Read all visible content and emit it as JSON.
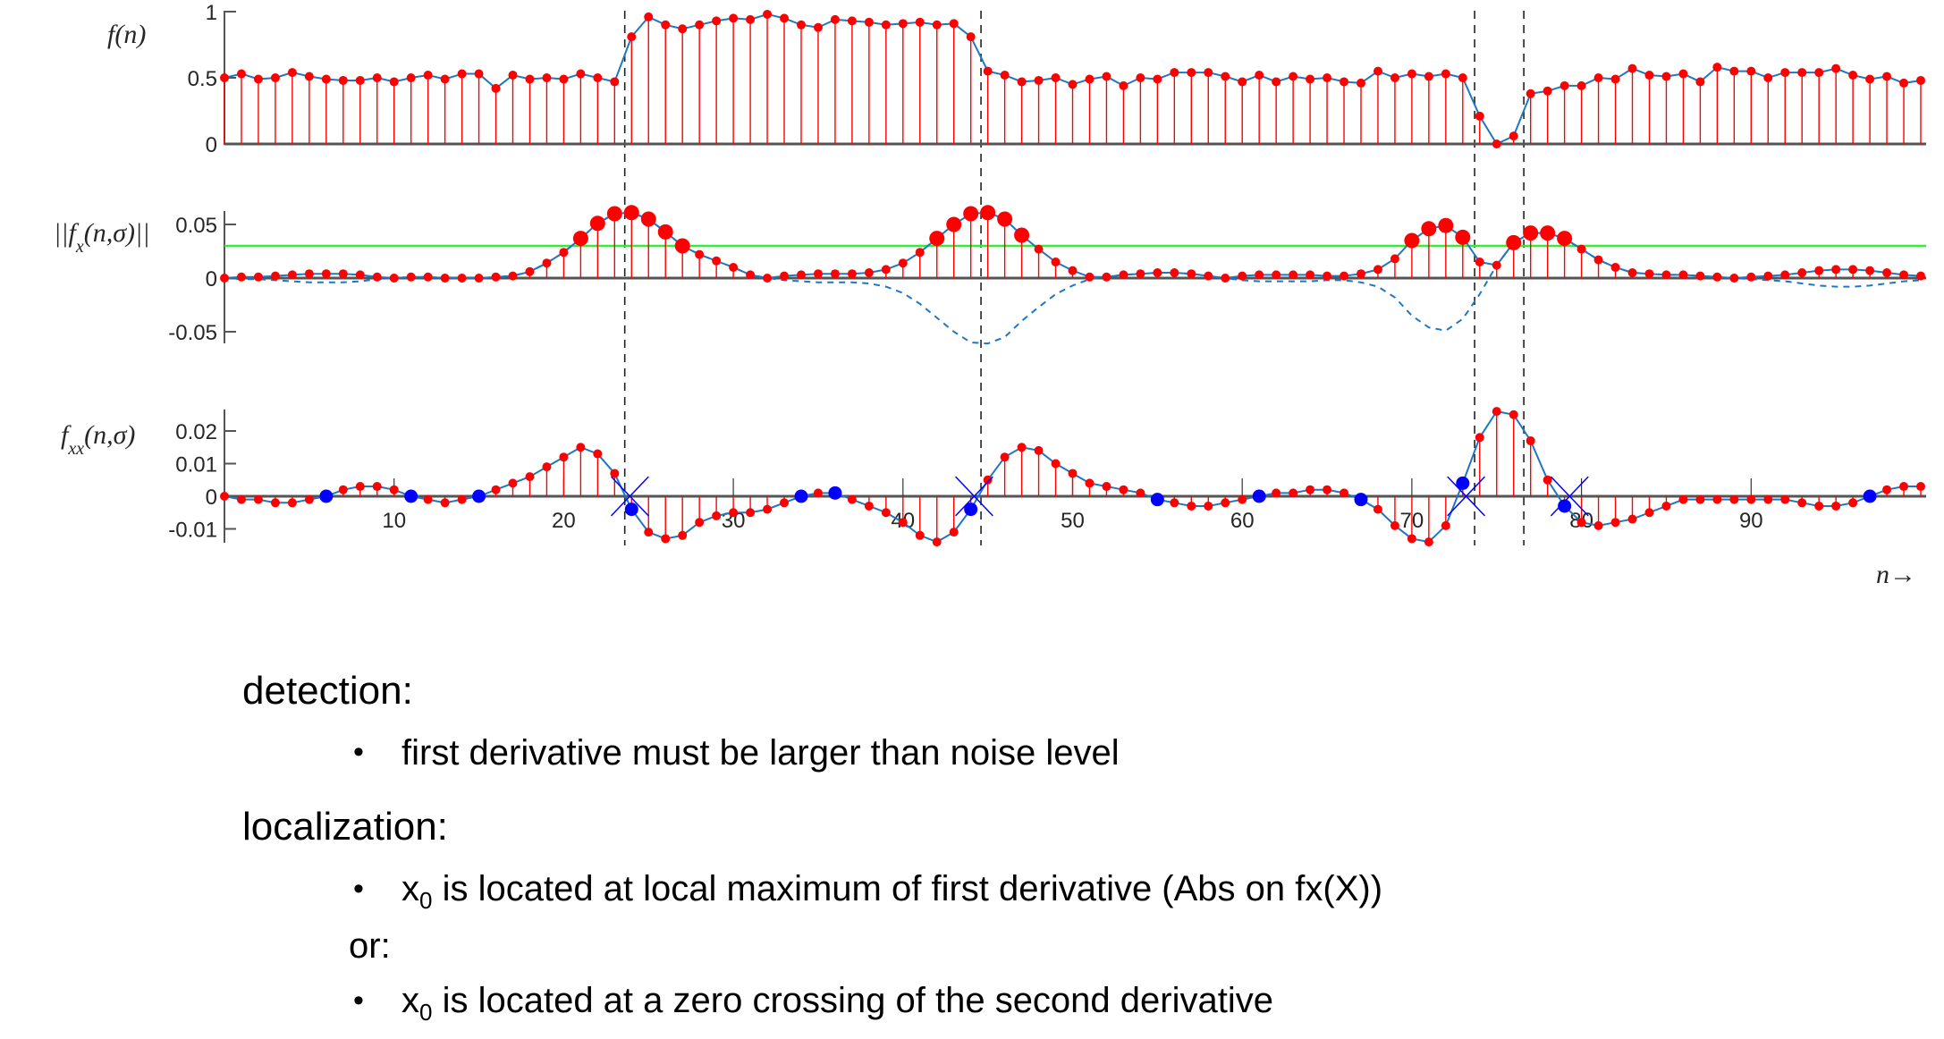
{
  "chart_data": [
    {
      "type": "bar",
      "subtype": "stem",
      "ylabel": "f(n)",
      "yticks": [
        "0",
        "0.5",
        "1"
      ],
      "ytick_values": [
        0,
        0.5,
        1
      ],
      "ylim": [
        0,
        1
      ],
      "x": "n = 0..100",
      "series": [
        {
          "name": "f(n)",
          "values": [
            0.5,
            0.53,
            0.49,
            0.5,
            0.54,
            0.51,
            0.49,
            0.48,
            0.48,
            0.5,
            0.47,
            0.5,
            0.52,
            0.49,
            0.53,
            0.53,
            0.42,
            0.52,
            0.49,
            0.5,
            0.49,
            0.53,
            0.5,
            0.47,
            0.81,
            0.96,
            0.9,
            0.87,
            0.9,
            0.93,
            0.95,
            0.94,
            0.98,
            0.95,
            0.9,
            0.88,
            0.94,
            0.93,
            0.92,
            0.9,
            0.91,
            0.92,
            0.9,
            0.91,
            0.81,
            0.55,
            0.52,
            0.47,
            0.48,
            0.5,
            0.45,
            0.49,
            0.51,
            0.44,
            0.5,
            0.49,
            0.54,
            0.54,
            0.54,
            0.51,
            0.47,
            0.52,
            0.47,
            0.51,
            0.49,
            0.5,
            0.47,
            0.46,
            0.55,
            0.5,
            0.53,
            0.51,
            0.53,
            0.5,
            0.21,
            0.0,
            0.06,
            0.38,
            0.4,
            0.44,
            0.44,
            0.5,
            0.49,
            0.57,
            0.52,
            0.51,
            0.53,
            0.47,
            0.58,
            0.55,
            0.55,
            0.5,
            0.54,
            0.54,
            0.54,
            0.57,
            0.52,
            0.49,
            0.51,
            0.46,
            0.48
          ]
        }
      ]
    },
    {
      "type": "bar",
      "subtype": "stem",
      "ylabel_main": "||f",
      "ylabel_sub": "x",
      "ylabel_tail": "(n,σ)||",
      "yticks": [
        "0.05",
        "0",
        "-0.05"
      ],
      "ytick_values": [
        0.05,
        0,
        -0.05
      ],
      "ylim": [
        -0.06,
        0.065
      ],
      "threshold": 0.03,
      "threshold_color": "#33ee33",
      "series": [
        {
          "name": "f_x(n,σ) (dashed, signed)",
          "values": [
            0.0,
            -0.001,
            -0.001,
            -0.002,
            -0.003,
            -0.004,
            -0.004,
            -0.004,
            -0.003,
            -0.001,
            0.0,
            0.001,
            0.001,
            0.0,
            0.0,
            0.0,
            0.001,
            0.002,
            0.006,
            0.014,
            0.024,
            0.037,
            0.051,
            0.06,
            0.061,
            0.055,
            0.043,
            0.03,
            0.022,
            0.016,
            0.01,
            0.003,
            0.0,
            -0.002,
            -0.003,
            -0.004,
            -0.004,
            -0.004,
            -0.005,
            -0.008,
            -0.014,
            -0.024,
            -0.037,
            -0.05,
            -0.06,
            -0.061,
            -0.055,
            -0.04,
            -0.027,
            -0.015,
            -0.007,
            -0.001,
            0.001,
            0.003,
            0.004,
            0.005,
            0.005,
            0.004,
            0.002,
            0.0,
            -0.002,
            -0.003,
            -0.003,
            -0.003,
            -0.003,
            -0.002,
            -0.002,
            -0.004,
            -0.008,
            -0.018,
            -0.035,
            -0.046,
            -0.049,
            -0.038,
            -0.015,
            0.012,
            0.033,
            0.042,
            0.042,
            0.037,
            0.027,
            0.017,
            0.01,
            0.005,
            0.004,
            0.003,
            0.003,
            0.002,
            0.001,
            0.0,
            -0.001,
            -0.002,
            -0.003,
            -0.005,
            -0.007,
            -0.008,
            -0.008,
            -0.007,
            -0.005,
            -0.003,
            -0.002
          ]
        }
      ]
    },
    {
      "type": "bar",
      "subtype": "stem",
      "ylabel_main": "f",
      "ylabel_sub": "xx",
      "ylabel_tail": "(n,σ)",
      "yticks": [
        "0.02",
        "0.01",
        "0",
        "-0.01"
      ],
      "ytick_values": [
        0.02,
        0.01,
        0,
        -0.01
      ],
      "ylim": [
        -0.015,
        0.026
      ],
      "xticks": [
        "10",
        "20",
        "30",
        "40",
        "50",
        "60",
        "70",
        "80",
        "90"
      ],
      "xtick_values": [
        10,
        20,
        30,
        40,
        50,
        60,
        70,
        80,
        90
      ],
      "xlabel": "n→",
      "series": [
        {
          "name": "f_xx(n,σ)",
          "values": [
            0,
            -0.001,
            -0.001,
            -0.002,
            -0.002,
            -0.001,
            0,
            0.002,
            0.003,
            0.003,
            0.002,
            0,
            -0.001,
            -0.002,
            -0.001,
            0,
            0.002,
            0.004,
            0.006,
            0.009,
            0.012,
            0.015,
            0.013,
            0.007,
            -0.004,
            -0.011,
            -0.013,
            -0.012,
            -0.008,
            -0.006,
            -0.005,
            -0.005,
            -0.004,
            -0.002,
            0,
            0.001,
            0.001,
            -0.001,
            -0.003,
            -0.005,
            -0.008,
            -0.012,
            -0.014,
            -0.011,
            -0.004,
            0.005,
            0.012,
            0.015,
            0.014,
            0.01,
            0.007,
            0.004,
            0.003,
            0.002,
            0.001,
            -0.001,
            -0.002,
            -0.003,
            -0.003,
            -0.002,
            -0.001,
            0,
            0.001,
            0.001,
            0.002,
            0.002,
            0.001,
            -0.001,
            -0.004,
            -0.009,
            -0.013,
            -0.014,
            -0.009,
            0.004,
            0.018,
            0.026,
            0.025,
            0.017,
            0.005,
            -0.003,
            -0.008,
            -0.009,
            -0.008,
            -0.007,
            -0.005,
            -0.003,
            -0.001,
            -0.001,
            -0.001,
            -0.001,
            -0.001,
            -0.001,
            -0.001,
            -0.002,
            -0.003,
            -0.003,
            -0.002,
            0,
            0.002,
            0.003,
            0.003
          ]
        }
      ],
      "zero_crossing_markers_n": [
        6,
        11,
        15,
        24,
        34,
        36,
        44,
        55,
        61,
        67,
        73,
        79,
        97
      ],
      "selected_crossings_n": [
        23.9,
        44.2,
        73.2,
        79.3
      ]
    }
  ],
  "edge_lines_n": [
    23.6,
    44.6,
    73.7,
    76.6
  ],
  "colors": {
    "stem": "#ff0000",
    "line": "#1f77c4",
    "blue_marker": "#0000ff",
    "threshold": "#33ee33",
    "axis": "#555555"
  },
  "text": {
    "detection_heading": "detection:",
    "detection_bullet": "first derivative must be larger than noise level",
    "localization_heading": "localization:",
    "loc_bullet1_var": "x",
    "loc_bullet1_sub": "0",
    "loc_bullet1_rest": " is located at local maximum of first derivative (Abs on fx(X))",
    "or_label": "or:",
    "loc_bullet2_var": "x",
    "loc_bullet2_sub": "0",
    "loc_bullet2_rest": " is located at a zero crossing of the second derivative",
    "bullet": "•"
  }
}
